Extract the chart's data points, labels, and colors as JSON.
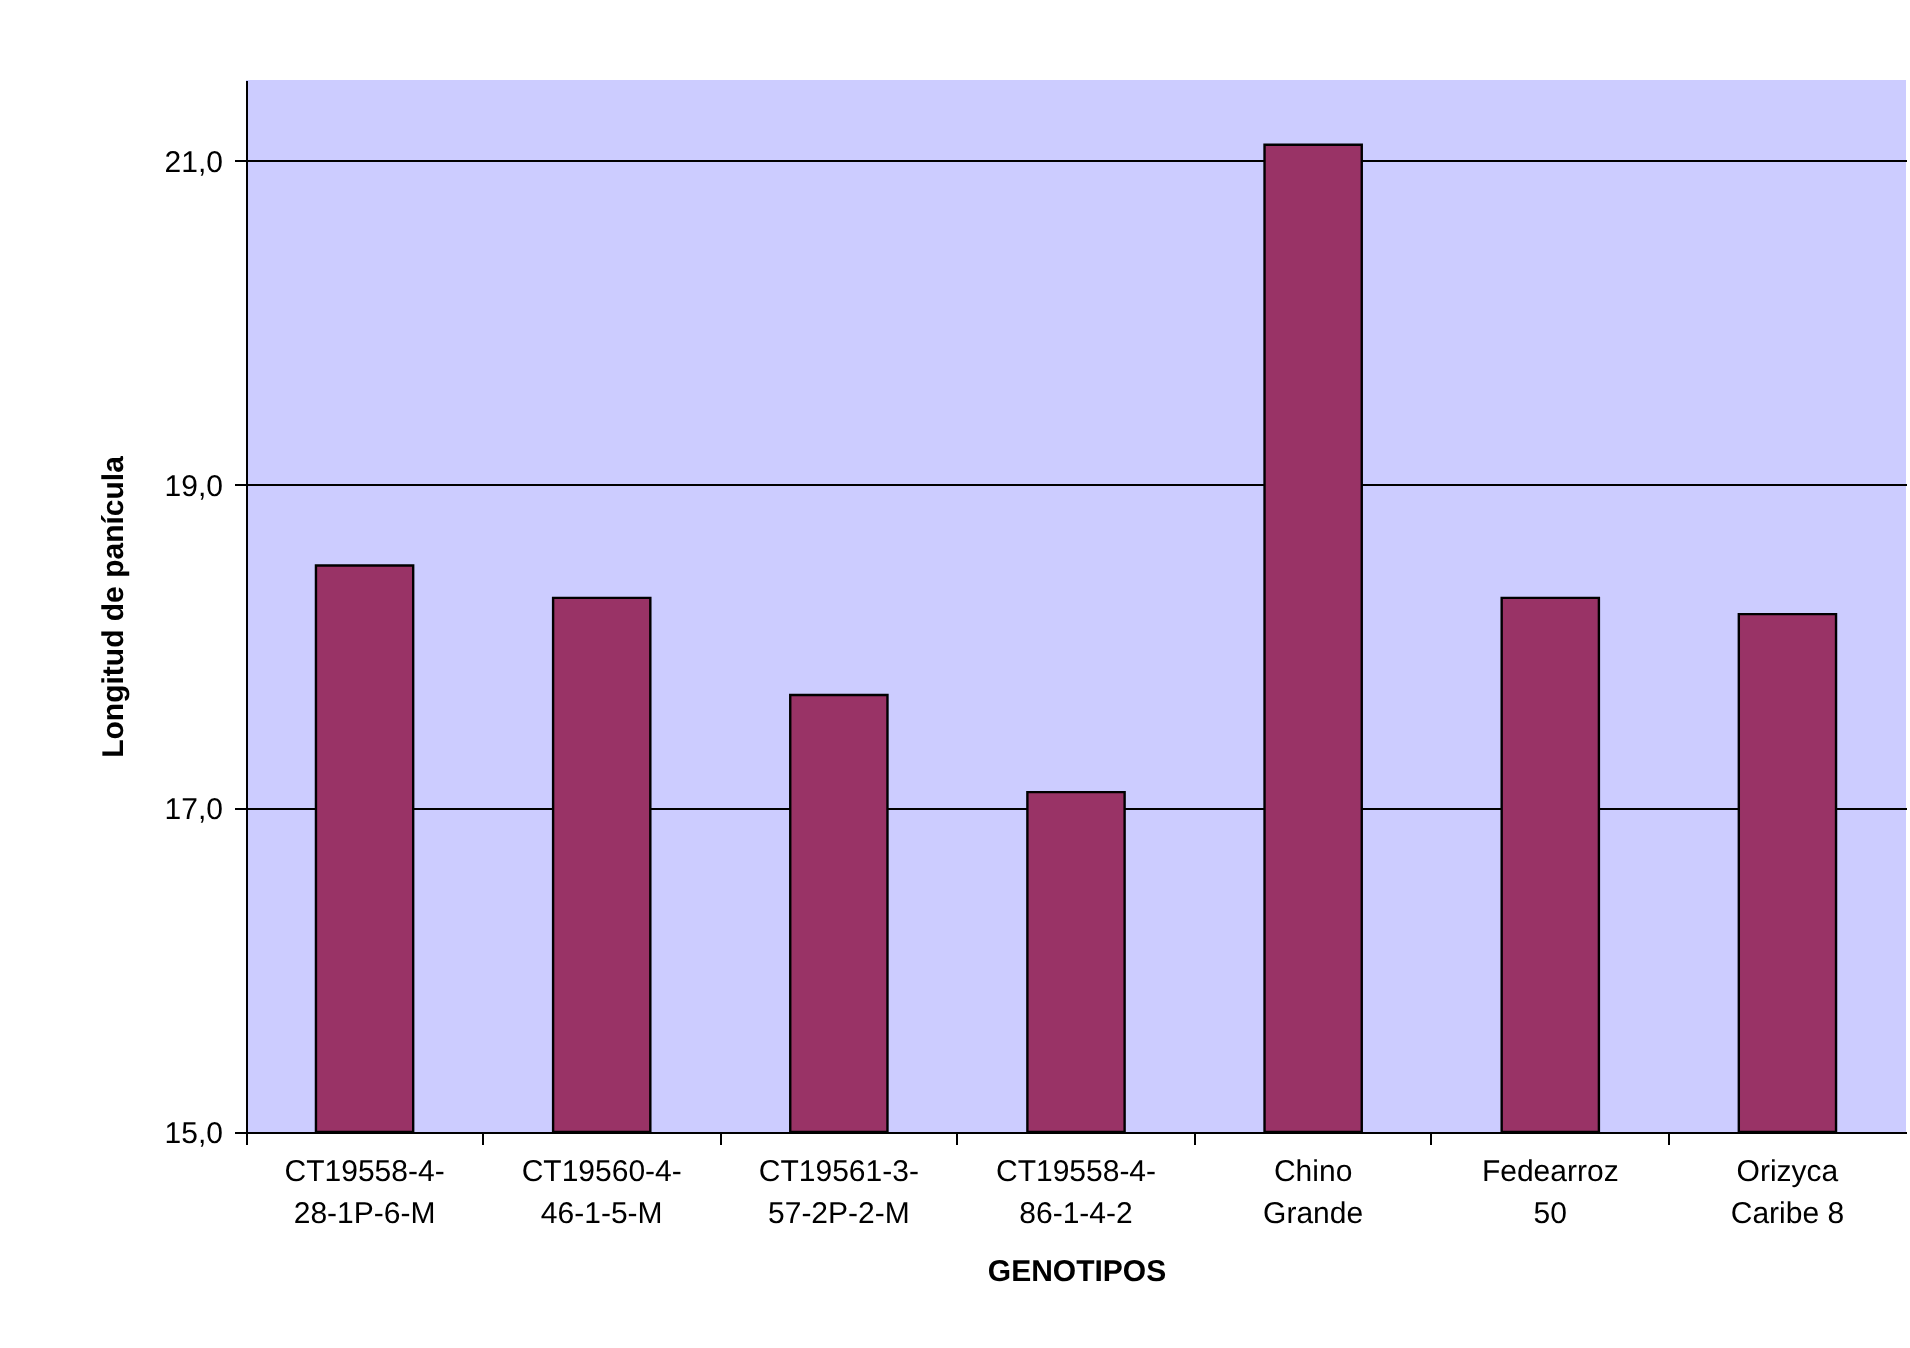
{
  "chart_data": {
    "type": "bar",
    "xlabel": "GENOTIPOS",
    "ylabel": "Longitud de panícula",
    "categories": [
      "CT19558-4-\n28-1P-6-M",
      "CT19560-4-\n46-1-5-M",
      "CT19561-3-\n57-2P-2-M",
      "CT19558-4-\n86-1-4-2",
      "Chino\nGrande",
      "Fedearroz\n50",
      "Orizyca\nCaribe 8"
    ],
    "values": [
      18.5,
      18.3,
      17.7,
      17.1,
      21.1,
      18.3,
      18.2
    ],
    "color": "#993366",
    "ylim": [
      15,
      21.5
    ],
    "yticks": [
      {
        "value": 15,
        "label": "15,0"
      },
      {
        "value": 17,
        "label": "17,0"
      },
      {
        "value": 19,
        "label": "19,0"
      },
      {
        "value": 21,
        "label": "21,0"
      }
    ],
    "grid": "y"
  }
}
